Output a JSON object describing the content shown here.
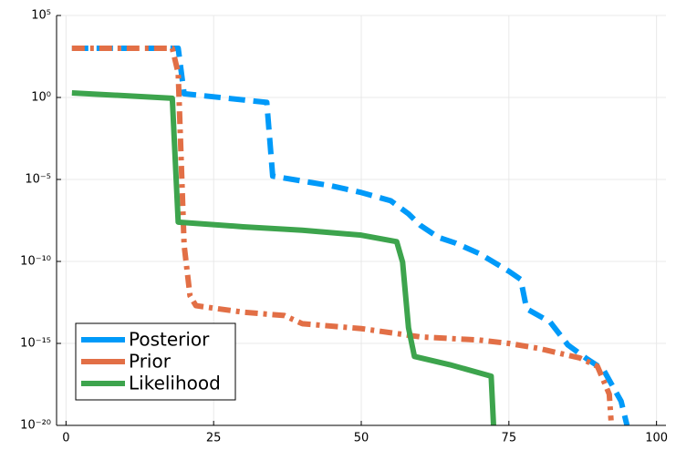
{
  "chart_data": {
    "type": "line",
    "log_y": true,
    "grid": true,
    "legend": "bottom-left",
    "xlim": [
      -1.6,
      101.6
    ],
    "xticks": [
      0,
      25,
      50,
      75,
      100
    ],
    "ylim": [
      1e-20,
      100000
    ],
    "yticks": [
      {
        "value": 1e-20,
        "label": "10⁻²⁰"
      },
      {
        "value": 1e-15,
        "label": "10⁻¹⁵"
      },
      {
        "value": 1e-10,
        "label": "10⁻¹⁰"
      },
      {
        "value": 1e-05,
        "label": "10⁻⁵"
      },
      {
        "value": 1,
        "label": "10⁰"
      },
      {
        "value": 100000,
        "label": "10⁵"
      }
    ],
    "series": [
      {
        "name": "Posterior",
        "color": "#009af9",
        "dash": "18 9",
        "x": [
          1,
          19,
          20,
          34,
          35,
          45,
          50,
          55,
          58,
          60,
          63,
          66,
          70,
          75,
          77,
          78,
          82,
          85,
          88,
          91,
          94,
          95
        ],
        "values": [
          1000,
          1000,
          1.7,
          0.5,
          1.6e-05,
          4e-06,
          1.6e-06,
          5e-07,
          8e-08,
          1.6e-08,
          3e-09,
          1.3e-09,
          3e-10,
          2.5e-11,
          8e-12,
          1.3e-13,
          2e-14,
          8e-16,
          1.3e-16,
          2.5e-17,
          3e-19,
          1e-20
        ]
      },
      {
        "name": "Prior",
        "color": "#e26f46",
        "dash": "14 6 4 6",
        "x": [
          1,
          18,
          19,
          20,
          21,
          22,
          30,
          37,
          40,
          50,
          56,
          60,
          70,
          75,
          80,
          87,
          90,
          92,
          92.3
        ],
        "values": [
          1000,
          1000,
          30,
          1e-09,
          8e-13,
          2e-13,
          8e-14,
          5e-14,
          1.6e-14,
          8e-15,
          4e-15,
          2.5e-15,
          1.6e-15,
          1e-15,
          5e-16,
          1.3e-16,
          4e-17,
          8e-19,
          2e-20
        ]
      },
      {
        "name": "Likelihood",
        "color": "#3da44d",
        "dash": "none",
        "x": [
          1,
          18,
          19,
          30,
          40,
          50,
          56,
          57,
          58,
          59,
          65,
          70,
          72,
          72.4
        ],
        "values": [
          1.9,
          0.9,
          2.5e-08,
          1.3e-08,
          8e-09,
          4e-09,
          1.6e-09,
          9e-11,
          9e-15,
          1.6e-16,
          5e-17,
          1.6e-17,
          1e-17,
          1e-20
        ]
      }
    ]
  }
}
